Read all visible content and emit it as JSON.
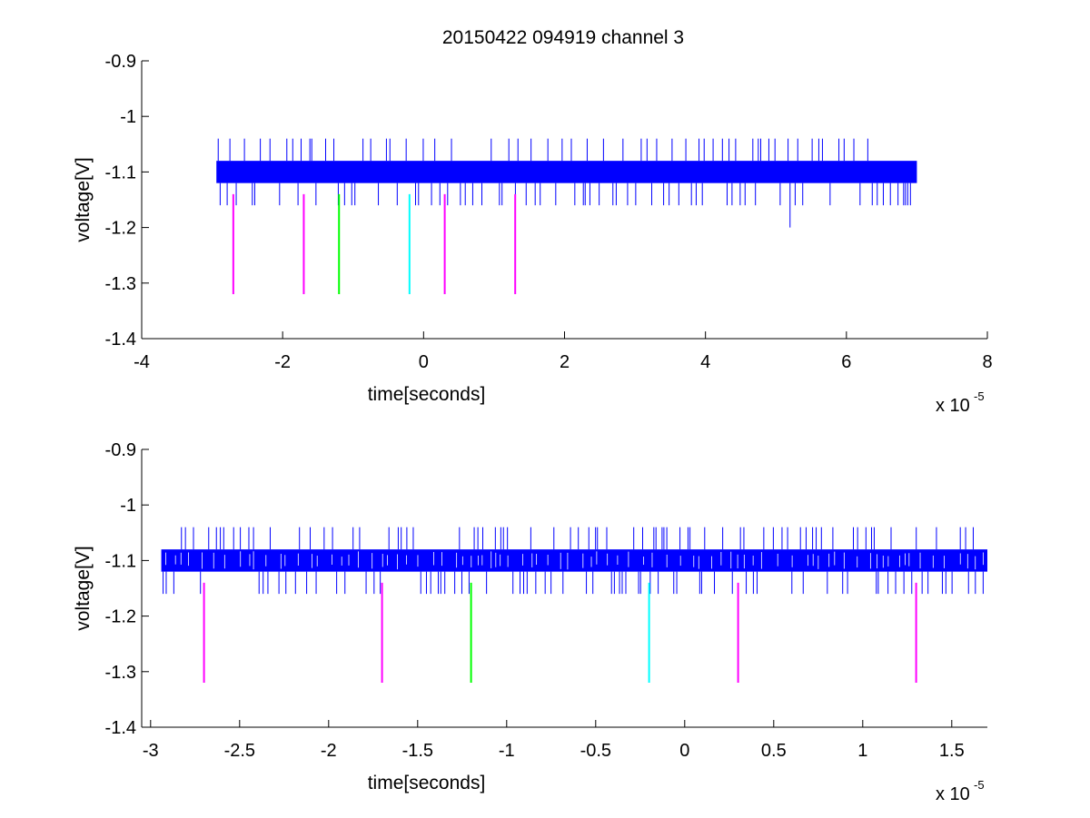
{
  "figure": {
    "title": "20150422 094919 channel 3"
  },
  "chart_data": [
    {
      "type": "line",
      "panel": "top",
      "title": "20150422 094919 channel 3",
      "xlabel": "time[seconds]",
      "ylabel": "voltage[V]",
      "x_exponent_label": "x 10",
      "x_exponent_power": "-5",
      "xlim": [
        -4,
        8
      ],
      "ylim": [
        -1.4,
        -0.9
      ],
      "xticks": [
        -4,
        -2,
        0,
        2,
        4,
        6,
        8
      ],
      "xtick_labels": [
        "-4",
        "-2",
        "0",
        "2",
        "4",
        "6",
        "8"
      ],
      "yticks": [
        -0.9,
        -1,
        -1.1,
        -1.2,
        -1.3,
        -1.4
      ],
      "ytick_labels": [
        "-0.9",
        "-1",
        "-1.1",
        "-1.2",
        "-1.3",
        "-1.4"
      ],
      "grid": false,
      "signal": {
        "name": "",
        "color": "#0000ff",
        "x_range": [
          -2.94,
          7.0
        ],
        "band": [
          -1.12,
          -1.08
        ],
        "spike_high": -1.04,
        "spike_low": -1.16,
        "outlier": {
          "x": 5.2,
          "y": -1.2
        }
      },
      "markers": [
        {
          "x": -2.7,
          "y_top": -1.14,
          "y_bottom": -1.32,
          "color": "#ff00ff"
        },
        {
          "x": -1.7,
          "y_top": -1.14,
          "y_bottom": -1.32,
          "color": "#ff00ff"
        },
        {
          "x": -1.2,
          "y_top": -1.14,
          "y_bottom": -1.32,
          "color": "#00ff00"
        },
        {
          "x": -0.2,
          "y_top": -1.14,
          "y_bottom": -1.32,
          "color": "#00ffff"
        },
        {
          "x": 0.3,
          "y_top": -1.14,
          "y_bottom": -1.32,
          "color": "#ff00ff"
        },
        {
          "x": 1.3,
          "y_top": -1.14,
          "y_bottom": -1.32,
          "color": "#ff00ff"
        }
      ]
    },
    {
      "type": "line",
      "panel": "bottom",
      "title": "",
      "xlabel": "time[seconds]",
      "ylabel": "voltage[V]",
      "x_exponent_label": "x 10",
      "x_exponent_power": "-5",
      "xlim": [
        -3.05,
        1.7
      ],
      "ylim": [
        -1.4,
        -0.9
      ],
      "xticks": [
        -3,
        -2.5,
        -2,
        -1.5,
        -1,
        -0.5,
        0,
        0.5,
        1,
        1.5
      ],
      "xtick_labels": [
        "-3",
        "-2.5",
        "-2",
        "-1.5",
        "-1",
        "-0.5",
        "0",
        "0.5",
        "1",
        "1.5"
      ],
      "yticks": [
        -0.9,
        -1,
        -1.1,
        -1.2,
        -1.3,
        -1.4
      ],
      "ytick_labels": [
        "-0.9",
        "-1",
        "-1.1",
        "-1.2",
        "-1.3",
        "-1.4"
      ],
      "grid": false,
      "signal": {
        "name": "",
        "color": "#0000ff",
        "x_range": [
          -2.94,
          1.7
        ],
        "band": [
          -1.12,
          -1.08
        ],
        "spike_high": -1.04,
        "spike_low": -1.16
      },
      "markers": [
        {
          "x": -2.7,
          "y_top": -1.14,
          "y_bottom": -1.32,
          "color": "#ff00ff"
        },
        {
          "x": -1.7,
          "y_top": -1.14,
          "y_bottom": -1.32,
          "color": "#ff00ff"
        },
        {
          "x": -1.2,
          "y_top": -1.14,
          "y_bottom": -1.32,
          "color": "#00ff00"
        },
        {
          "x": -0.2,
          "y_top": -1.14,
          "y_bottom": -1.32,
          "color": "#00ffff"
        },
        {
          "x": 0.3,
          "y_top": -1.14,
          "y_bottom": -1.32,
          "color": "#ff00ff"
        },
        {
          "x": 1.3,
          "y_top": -1.14,
          "y_bottom": -1.32,
          "color": "#ff00ff"
        }
      ]
    }
  ]
}
